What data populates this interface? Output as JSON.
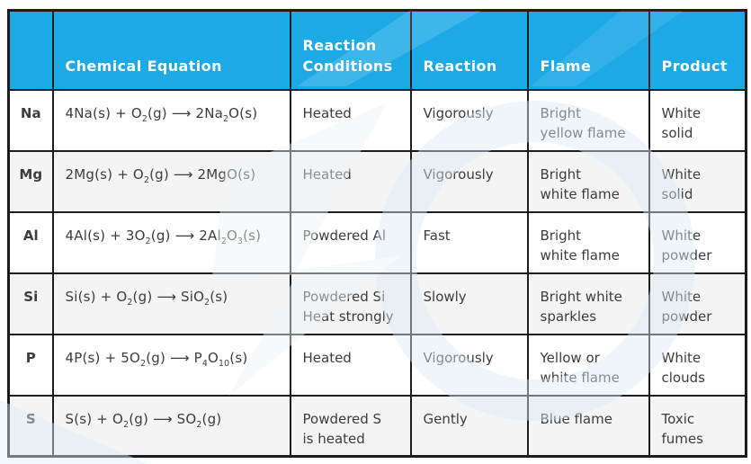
{
  "table": {
    "headers": [
      "",
      "Chemical Equation",
      "Reaction\nConditions",
      "Reaction",
      "Flame",
      "Product"
    ],
    "rows": [
      {
        "element": "Na",
        "equation": "4Na(s) + O_2_(g) ⟶ 2Na_2_O(s)",
        "conditions": "Heated",
        "reaction": "Vigorously",
        "flame": "Bright\nyellow flame",
        "product": "White\nsolid"
      },
      {
        "element": "Mg",
        "equation": "2Mg(s) + O_2_(g) ⟶ 2MgO(s)",
        "conditions": "Heated",
        "reaction": "Vigorously",
        "flame": "Bright\nwhite flame",
        "product": "White\nsolid"
      },
      {
        "element": "Al",
        "equation": "4Al(s) + 3O_2_(g) ⟶ 2Al_2_O_3_(s)",
        "conditions": "Powdered Al",
        "reaction": "Fast",
        "flame": "Bright\nwhite flame",
        "product": "White\npowder"
      },
      {
        "element": "Si",
        "equation": "Si(s) + O_2_(g) ⟶ SiO_2_(s)",
        "conditions": "Powdered Si\nHeat strongly",
        "reaction": "Slowly",
        "flame": "Bright white\nsparkles",
        "product": "White\npowder"
      },
      {
        "element": "P",
        "equation": "4P(s) + 5O_2_(g) ⟶ P_4_O_10_(s)",
        "conditions": "Heated",
        "reaction": "Vigorously",
        "flame": "Yellow or\nwhite flame",
        "product": "White\nclouds"
      },
      {
        "element": "S",
        "equation": "S(s) + O_2_(g) ⟶ SO_2_(g)",
        "conditions": "Powdered S\nis heated",
        "reaction": "Gently",
        "flame": "Blue flame",
        "product": "Toxic\nfumes"
      }
    ]
  },
  "colors": {
    "header_bg": "#1CA9E6",
    "header_text": "#FFFFFF",
    "row_stripe": "#F4F4F4",
    "row_plain": "#FFFFFF",
    "border": "#1C1C1C",
    "body_text": "#3C3C3C",
    "watermark_blue": "#DCEAF4",
    "watermark_gray": "#F0F2F3"
  }
}
